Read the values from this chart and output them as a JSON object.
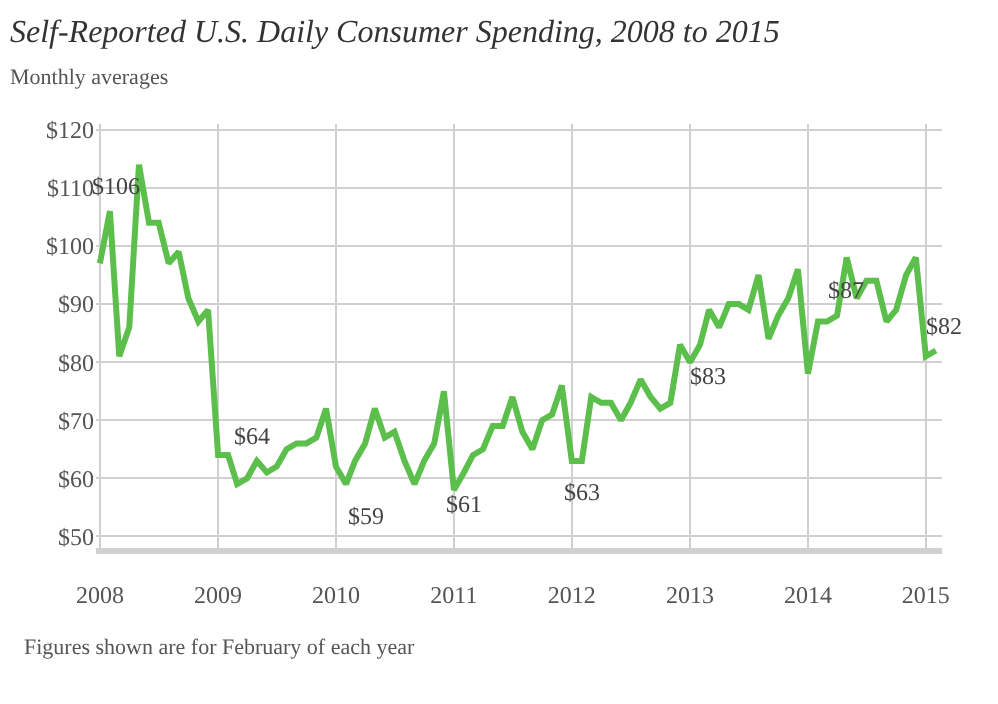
{
  "chart_data": {
    "type": "line",
    "title": "Self-Reported U.S. Daily Consumer Spending, 2008 to 2015",
    "subtitle": "Monthly averages",
    "x": [
      "2008-01",
      "2008-02",
      "2008-03",
      "2008-04",
      "2008-05",
      "2008-06",
      "2008-07",
      "2008-08",
      "2008-09",
      "2008-10",
      "2008-11",
      "2008-12",
      "2009-01",
      "2009-02",
      "2009-03",
      "2009-04",
      "2009-05",
      "2009-06",
      "2009-07",
      "2009-08",
      "2009-09",
      "2009-10",
      "2009-11",
      "2009-12",
      "2010-01",
      "2010-02",
      "2010-03",
      "2010-04",
      "2010-05",
      "2010-06",
      "2010-07",
      "2010-08",
      "2010-09",
      "2010-10",
      "2010-11",
      "2010-12",
      "2011-01",
      "2011-02",
      "2011-03",
      "2011-04",
      "2011-05",
      "2011-06",
      "2011-07",
      "2011-08",
      "2011-09",
      "2011-10",
      "2011-11",
      "2011-12",
      "2012-01",
      "2012-02",
      "2012-03",
      "2012-04",
      "2012-05",
      "2012-06",
      "2012-07",
      "2012-08",
      "2012-09",
      "2012-10",
      "2012-11",
      "2012-12",
      "2013-01",
      "2013-02",
      "2013-03",
      "2013-04",
      "2013-05",
      "2013-06",
      "2013-07",
      "2013-08",
      "2013-09",
      "2013-10",
      "2013-11",
      "2013-12",
      "2014-01",
      "2014-02",
      "2014-03",
      "2014-04",
      "2014-05",
      "2014-06",
      "2014-07",
      "2014-08",
      "2014-09",
      "2014-10",
      "2014-11",
      "2014-12",
      "2015-01",
      "2015-02"
    ],
    "series": [
      {
        "color": "#5cbf4c",
        "values": [
          97,
          106,
          81,
          86,
          114,
          104,
          104,
          97,
          99,
          91,
          87,
          89,
          64,
          64,
          59,
          60,
          63,
          61,
          62,
          65,
          66,
          66,
          67,
          72,
          62,
          59,
          63,
          66,
          72,
          67,
          68,
          63,
          59,
          63,
          66,
          75,
          58,
          61,
          64,
          65,
          69,
          69,
          74,
          68,
          65,
          70,
          71,
          76,
          63,
          63,
          74,
          73,
          73,
          70,
          73,
          77,
          74,
          72,
          73,
          83,
          80,
          83,
          89,
          86,
          90,
          90,
          89,
          95,
          84,
          88,
          91,
          96,
          78,
          87,
          87,
          88,
          98,
          91,
          94,
          94,
          87,
          89,
          95,
          98,
          81,
          82
        ]
      }
    ],
    "ylim": [
      48,
      121
    ],
    "yticks": [
      {
        "value": 50,
        "label": "$50"
      },
      {
        "value": 60,
        "label": "$60"
      },
      {
        "value": 70,
        "label": "$70"
      },
      {
        "value": 80,
        "label": "$80"
      },
      {
        "value": 90,
        "label": "$90"
      },
      {
        "value": 100,
        "label": "$100"
      },
      {
        "value": 110,
        "label": "$110"
      },
      {
        "value": 120,
        "label": "$120"
      }
    ],
    "xlim": [
      "2007-12-20",
      "2015-02-20"
    ],
    "xticks": [
      {
        "value": "2008-01-01",
        "label": "2008"
      },
      {
        "value": "2009-01-01",
        "label": "2009"
      },
      {
        "value": "2010-01-01",
        "label": "2010"
      },
      {
        "value": "2011-01-01",
        "label": "2011"
      },
      {
        "value": "2012-01-01",
        "label": "2012"
      },
      {
        "value": "2013-01-01",
        "label": "2013"
      },
      {
        "value": "2014-01-01",
        "label": "2014"
      },
      {
        "value": "2015-01-01",
        "label": "2015"
      }
    ],
    "grid": true,
    "marker": "none",
    "line_style": "solid",
    "annotations": [
      {
        "text": "$106",
        "x": "2008-02",
        "y": 106
      },
      {
        "text": "$64",
        "x": "2009-02",
        "y": 64
      },
      {
        "text": "$59",
        "x": "2010-02",
        "y": 59
      },
      {
        "text": "$61",
        "x": "2011-02",
        "y": 61
      },
      {
        "text": "$63",
        "x": "2012-02",
        "y": 63
      },
      {
        "text": "$83",
        "x": "2013-02",
        "y": 83
      },
      {
        "text": "$87",
        "x": "2014-02",
        "y": 87
      },
      {
        "text": "$82",
        "x": "2015-02",
        "y": 82
      },
      "Figures shown are for February of each year"
    ]
  }
}
